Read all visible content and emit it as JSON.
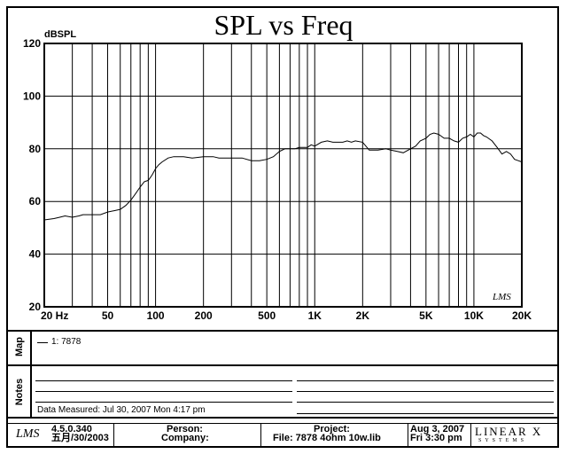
{
  "chart_data": {
    "type": "line",
    "title": "SPL vs Freq",
    "ylabel": "dBSPL",
    "xlabel": "",
    "xscale": "log",
    "xlim": [
      20,
      20000
    ],
    "ylim": [
      20,
      120
    ],
    "grid": true,
    "y_ticks": [
      20,
      40,
      60,
      80,
      100,
      120
    ],
    "x_ticks": [
      {
        "value": 20,
        "label": "20 Hz"
      },
      {
        "value": 50,
        "label": "50"
      },
      {
        "value": 100,
        "label": "100"
      },
      {
        "value": 200,
        "label": "200"
      },
      {
        "value": 500,
        "label": "500"
      },
      {
        "value": 1000,
        "label": "1K"
      },
      {
        "value": 2000,
        "label": "2K"
      },
      {
        "value": 5000,
        "label": "5K"
      },
      {
        "value": 10000,
        "label": "10K"
      },
      {
        "value": 20000,
        "label": "20K"
      }
    ],
    "series": [
      {
        "name": "1: 7878",
        "x": [
          20,
          23,
          25,
          27,
          30,
          33,
          35,
          40,
          45,
          50,
          55,
          60,
          65,
          70,
          75,
          80,
          85,
          90,
          95,
          100,
          105,
          110,
          120,
          130,
          150,
          170,
          200,
          230,
          250,
          280,
          300,
          350,
          400,
          450,
          500,
          550,
          600,
          650,
          700,
          750,
          800,
          850,
          900,
          950,
          1000,
          1100,
          1200,
          1300,
          1400,
          1500,
          1600,
          1700,
          1800,
          2000,
          2200,
          2500,
          2800,
          3000,
          3300,
          3600,
          4000,
          4300,
          4600,
          5000,
          5300,
          5600,
          6000,
          6500,
          7000,
          7500,
          8000,
          8500,
          9000,
          9500,
          10000,
          10500,
          11000,
          11500,
          12000,
          13000,
          14000,
          15000,
          16000,
          17000,
          18000,
          19000,
          20000
        ],
        "y": [
          53,
          53.5,
          54,
          54.5,
          54,
          54.5,
          55,
          55,
          55,
          56,
          56.5,
          57,
          58.5,
          60.5,
          63,
          65.5,
          67.5,
          68,
          70,
          72.5,
          74,
          75,
          76.5,
          77,
          77,
          76.5,
          77,
          77,
          76.5,
          76.5,
          76.5,
          76.5,
          75.5,
          75.5,
          76,
          77,
          79,
          80,
          80,
          80,
          80.5,
          80.5,
          80.5,
          81.5,
          81,
          82.5,
          83,
          82.5,
          82.5,
          82.5,
          83,
          82.5,
          83,
          82.5,
          79.5,
          79.5,
          80,
          79.5,
          79,
          78.5,
          80,
          81,
          83,
          84,
          85.5,
          86,
          85.5,
          84,
          84,
          83,
          82.5,
          84,
          84.5,
          85.5,
          84.5,
          86,
          86,
          85,
          84.5,
          83,
          80.5,
          78,
          79,
          78,
          76,
          75.5,
          75
        ]
      }
    ]
  },
  "legend": {
    "panel_label": "Map",
    "entry": "1: 7878"
  },
  "notes": {
    "panel_label": "Notes",
    "measured": "Data Measured: Jul 30, 2007  Mon  4:17 pm"
  },
  "footer": {
    "logo": "LMS",
    "version": "4.5.0.340",
    "version_date": "五月/30/2003",
    "person_label": "Person:",
    "company_label": "Company:",
    "project_label": "Project:",
    "file_text": "File: 7878   4ohm 10w.lib",
    "date": "Aug  3, 2007",
    "day_time": "Fri  3:30 pm",
    "brand": "LINEAR X",
    "brand_sub": "SYSTEMS"
  },
  "watermark": "LMS"
}
